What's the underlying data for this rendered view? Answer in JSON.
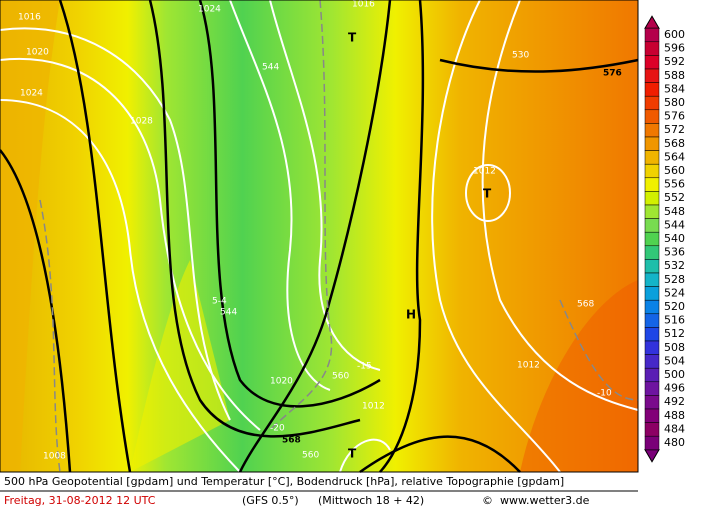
{
  "footer": {
    "description": "500 hPa Geopotential [gpdam] und Temperatur [°C], Bodendruck [hPa], relative Topographie [gpdam]",
    "date": "Freitag, 31-08-2012  12 UTC",
    "model": "(GFS 0.5°)",
    "run": "(Mittwoch 18 + 42)",
    "copyright": "©",
    "site": "www.wetter3.de"
  },
  "map_labels": [
    "1016",
    "1020",
    "1024",
    "1028",
    "1024",
    "T",
    "1016",
    "544",
    "530",
    "576",
    "1012",
    "T",
    "5-4",
    "544",
    "H",
    "568",
    "1020",
    "-15",
    "560",
    "1012",
    "1012",
    "-10",
    "-20",
    "568",
    "560",
    "T",
    "1008"
  ],
  "legend": {
    "levels": [
      600,
      596,
      592,
      588,
      584,
      580,
      576,
      572,
      568,
      564,
      560,
      556,
      552,
      548,
      544,
      540,
      536,
      532,
      528,
      524,
      520,
      516,
      512,
      508,
      504,
      500,
      496,
      492,
      488,
      484,
      480
    ],
    "colors": [
      "#b4004b",
      "#c80032",
      "#dc0028",
      "#e61414",
      "#f01e00",
      "#f03c00",
      "#f05a00",
      "#f07800",
      "#f09600",
      "#f0b400",
      "#f0d200",
      "#f0f000",
      "#d2f000",
      "#a0e632",
      "#78dc50",
      "#50d250",
      "#32c878",
      "#1ebeaa",
      "#14b4c8",
      "#0aa0dc",
      "#0a82e6",
      "#1464e6",
      "#1e46e6",
      "#3232dc",
      "#4628c8",
      "#5a1eb4",
      "#6e14a0",
      "#7a0a8c",
      "#820078",
      "#8c0064",
      "#7a0078"
    ]
  }
}
